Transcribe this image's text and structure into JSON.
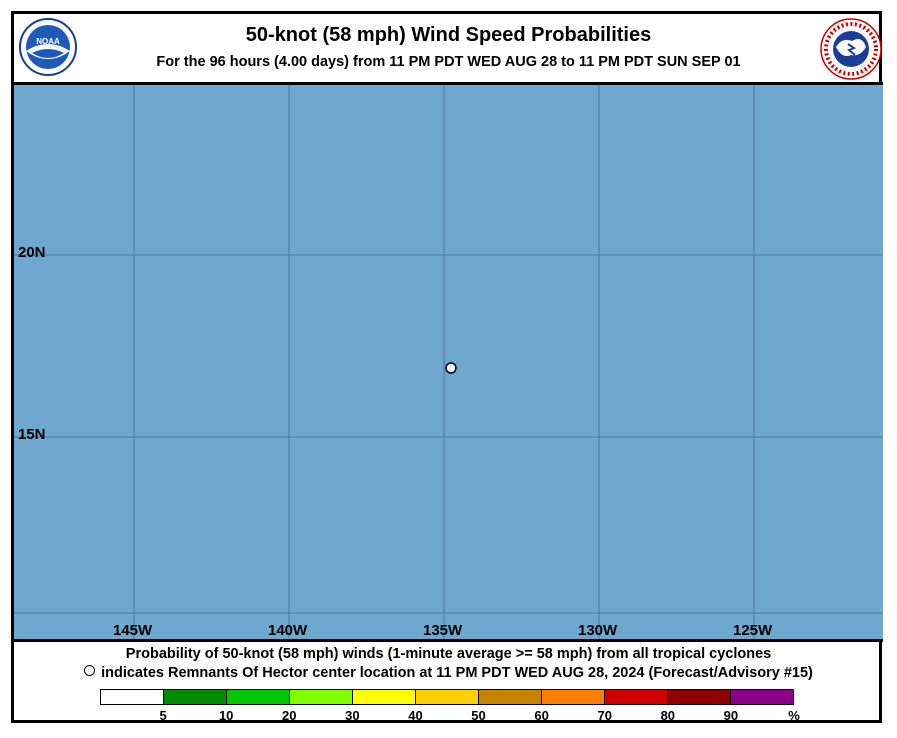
{
  "header": {
    "title": "50-knot (58 mph) Wind Speed Probabilities",
    "subtitle": "For the  96 hours (4.00 days) from 11 PM PDT WED AUG 28 to 11 PM PDT SUN SEP 01"
  },
  "logos": {
    "left": "noaa-logo",
    "left_text": "NOAA",
    "right": "nws-logo"
  },
  "map": {
    "ocean_color": "#6fa8cf",
    "grid_color": "#3f6f8f",
    "lat_labels": [
      "20N",
      "15N"
    ],
    "lon_labels": [
      "145W",
      "140W",
      "135W",
      "130W",
      "125W"
    ],
    "storm_center": {
      "lat": 16.9,
      "lon": -134.8
    }
  },
  "caption": {
    "line1": "Probability of 50-knot (58 mph) winds (1-minute average >= 58 mph) from all tropical cyclones",
    "line2": "indicates Remnants Of Hector center location at 11 PM PDT WED AUG 28, 2024 (Forecast/Advisory #15)"
  },
  "legend": {
    "colors": [
      "#ffffff",
      "#008c00",
      "#00c800",
      "#80ff00",
      "#ffff00",
      "#ffd000",
      "#c88400",
      "#ff8000",
      "#d00000",
      "#8c0000",
      "#8c008c"
    ],
    "ticks": [
      "5",
      "10",
      "20",
      "30",
      "40",
      "50",
      "60",
      "70",
      "80",
      "90",
      "%"
    ]
  }
}
